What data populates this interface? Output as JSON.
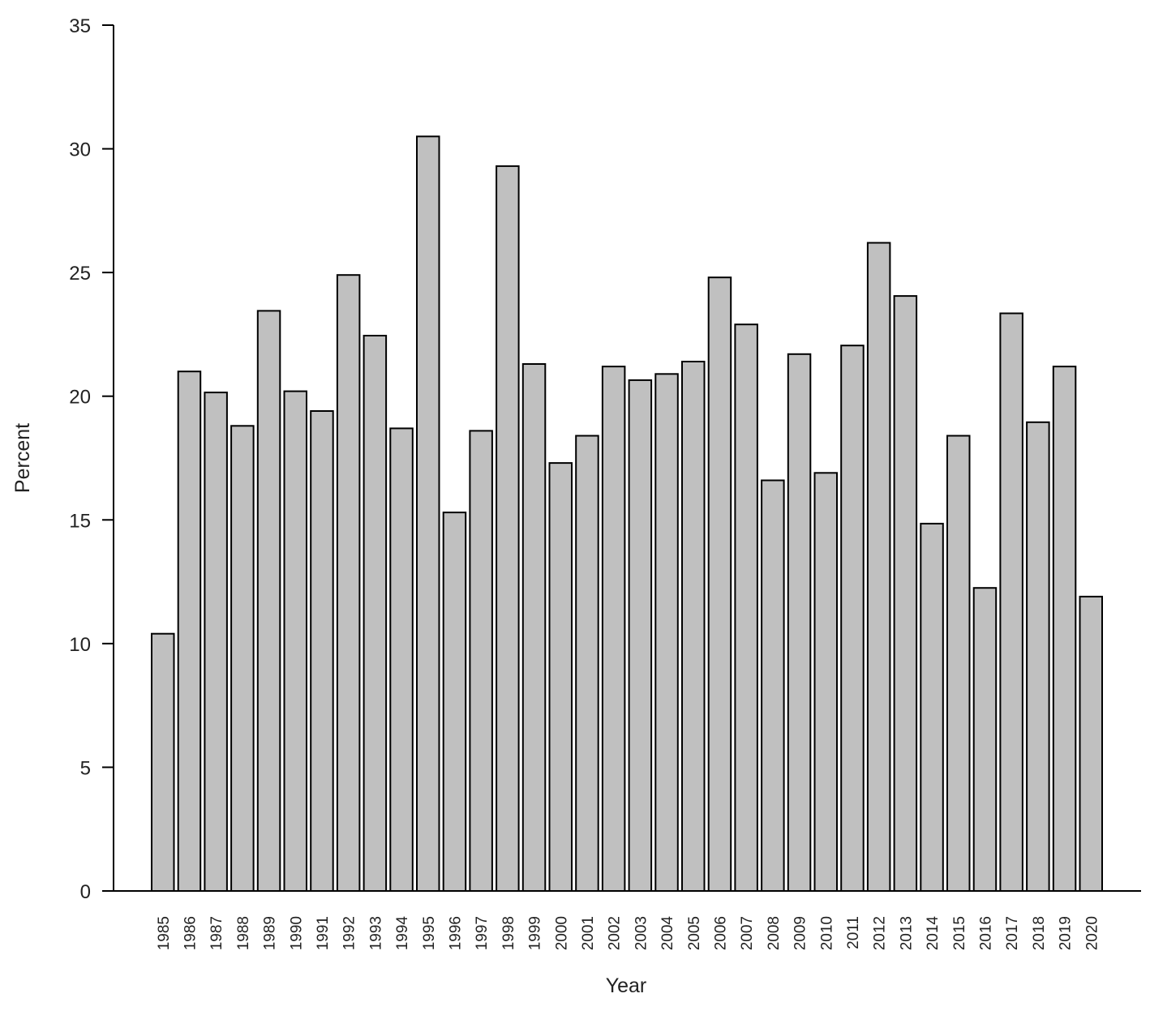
{
  "chart_data": {
    "type": "bar",
    "title": "",
    "xlabel": "Year",
    "ylabel": "Percent",
    "ylim": [
      0,
      35
    ],
    "yticks": [
      0,
      5,
      10,
      15,
      20,
      25,
      30,
      35
    ],
    "grid": false,
    "legend": "none",
    "colors": {
      "bar_fill": "#c0c0c0",
      "bar_stroke": "#000000"
    },
    "categories": [
      "1985",
      "1986",
      "1987",
      "1988",
      "1989",
      "1990",
      "1991",
      "1992",
      "1993",
      "1994",
      "1995",
      "1996",
      "1997",
      "1998",
      "1999",
      "2000",
      "2001",
      "2002",
      "2003",
      "2004",
      "2005",
      "2006",
      "2007",
      "2008",
      "2009",
      "2010",
      "2011",
      "2012",
      "2013",
      "2014",
      "2015",
      "2016",
      "2017",
      "2018",
      "2019",
      "2020"
    ],
    "values": [
      10.4,
      21.0,
      20.15,
      18.8,
      23.45,
      20.2,
      19.4,
      24.9,
      22.45,
      18.7,
      30.5,
      15.3,
      18.6,
      29.3,
      21.3,
      17.3,
      18.4,
      21.2,
      20.65,
      20.9,
      21.4,
      24.8,
      22.9,
      16.6,
      21.7,
      16.9,
      22.05,
      26.2,
      24.05,
      14.85,
      18.4,
      12.25,
      23.35,
      18.95,
      21.2,
      11.9
    ]
  }
}
